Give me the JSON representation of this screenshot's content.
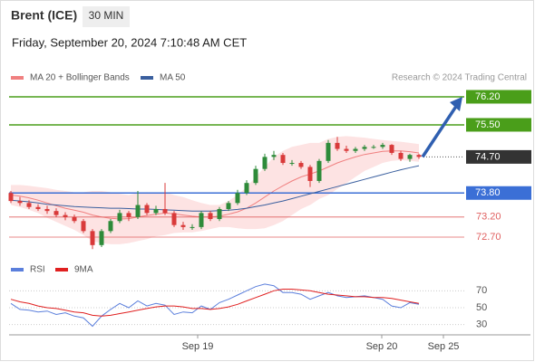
{
  "header": {
    "title": "Brent (ICE)",
    "timeframe": "30 MIN",
    "datetime": "Friday, September 20, 2024 7:10:48 AM CET",
    "attribution": "Research © 2024 Trading Central"
  },
  "chart_data": [
    {
      "type": "candlestick",
      "x": [
        0,
        1,
        2,
        3,
        4,
        5,
        6,
        7,
        8,
        9,
        10,
        11,
        12,
        13,
        14,
        15,
        16,
        17,
        18,
        19,
        20,
        21,
        22,
        23,
        24,
        25,
        26,
        27,
        28,
        29,
        30,
        31,
        32,
        33,
        34,
        35,
        36,
        37,
        38,
        39,
        40,
        41,
        42,
        43,
        44,
        45
      ],
      "open": [
        73.8,
        73.6,
        73.55,
        73.45,
        73.4,
        73.35,
        73.25,
        73.2,
        73.1,
        72.85,
        72.5,
        72.85,
        73.1,
        73.3,
        73.2,
        73.5,
        73.3,
        73.4,
        73.3,
        73.0,
        72.95,
        72.95,
        73.3,
        73.15,
        73.4,
        73.55,
        73.8,
        74.05,
        74.4,
        74.7,
        74.75,
        74.55,
        74.55,
        74.45,
        74.1,
        74.6,
        75.05,
        74.9,
        74.85,
        74.9,
        74.95,
        74.95,
        75.0,
        74.8,
        74.65,
        74.75
      ],
      "high": [
        73.85,
        73.7,
        73.62,
        73.52,
        73.48,
        73.42,
        73.32,
        73.26,
        73.15,
        72.9,
        72.9,
        73.15,
        73.38,
        73.35,
        73.85,
        73.55,
        73.48,
        74.05,
        73.35,
        73.08,
        73.02,
        73.35,
        73.35,
        73.45,
        73.6,
        73.88,
        74.12,
        74.48,
        74.78,
        74.85,
        74.8,
        74.62,
        74.6,
        74.5,
        74.65,
        75.12,
        75.2,
        74.98,
        74.95,
        75.0,
        75.0,
        75.05,
        75.02,
        74.85,
        74.78,
        74.78
      ],
      "low": [
        73.55,
        73.48,
        73.4,
        73.35,
        73.28,
        73.2,
        73.12,
        73.05,
        72.8,
        72.4,
        72.45,
        72.8,
        73.05,
        73.1,
        73.15,
        73.25,
        73.25,
        73.25,
        72.95,
        72.88,
        72.88,
        72.9,
        73.1,
        73.1,
        73.35,
        73.5,
        73.75,
        74.0,
        74.35,
        74.62,
        74.5,
        74.48,
        74.4,
        73.95,
        74.05,
        74.55,
        74.85,
        74.8,
        74.8,
        74.85,
        74.9,
        74.9,
        74.75,
        74.6,
        74.58,
        74.65
      ],
      "close": [
        73.6,
        73.55,
        73.45,
        73.4,
        73.35,
        73.25,
        73.2,
        73.1,
        72.85,
        72.5,
        72.85,
        73.1,
        73.3,
        73.2,
        73.5,
        73.3,
        73.4,
        73.3,
        73.0,
        72.95,
        72.95,
        73.3,
        73.15,
        73.4,
        73.55,
        73.8,
        74.05,
        74.4,
        74.7,
        74.75,
        74.55,
        74.55,
        74.45,
        74.1,
        74.6,
        75.05,
        74.9,
        74.85,
        74.9,
        74.95,
        74.95,
        75.0,
        74.8,
        74.65,
        74.75,
        74.7
      ],
      "up_color": "#2e8b3a",
      "down_color": "#d93a3a",
      "bands": {
        "name": "MA 20 + Bollinger Bands",
        "color": "#f08080",
        "fill": "#fde3e3",
        "values": [
          73.75,
          73.72,
          73.68,
          73.62,
          73.55,
          73.48,
          73.42,
          73.37,
          73.32,
          73.25,
          73.2,
          73.17,
          73.15,
          73.16,
          73.2,
          73.24,
          73.27,
          73.3,
          73.28,
          73.25,
          73.22,
          73.2,
          73.2,
          73.22,
          73.27,
          73.33,
          73.42,
          73.55,
          73.7,
          73.85,
          73.98,
          74.1,
          74.2,
          74.27,
          74.35,
          74.45,
          74.55,
          74.63,
          74.7,
          74.76,
          74.8,
          74.84,
          74.85,
          74.85,
          74.83,
          74.8
        ],
        "upper": [
          74.0,
          74.0,
          73.98,
          73.95,
          73.92,
          73.88,
          73.85,
          73.82,
          73.82,
          73.85,
          73.85,
          73.82,
          73.78,
          73.75,
          73.8,
          73.82,
          73.8,
          73.82,
          73.75,
          73.7,
          73.62,
          73.55,
          73.5,
          73.5,
          73.6,
          73.75,
          73.95,
          74.2,
          74.45,
          74.7,
          74.85,
          74.95,
          75.0,
          75.05,
          75.05,
          75.15,
          75.2,
          75.22,
          75.2,
          75.18,
          75.15,
          75.12,
          75.1,
          75.08,
          75.05,
          75.02
        ],
        "lower": [
          73.5,
          73.45,
          73.38,
          73.3,
          73.18,
          73.08,
          72.98,
          72.88,
          72.75,
          72.6,
          72.55,
          72.52,
          72.52,
          72.55,
          72.6,
          72.65,
          72.72,
          72.75,
          72.8,
          72.82,
          72.82,
          72.85,
          72.9,
          72.95,
          72.95,
          72.92,
          72.9,
          72.9,
          72.92,
          73.0,
          73.1,
          73.25,
          73.4,
          73.5,
          73.65,
          73.75,
          73.9,
          74.05,
          74.2,
          74.35,
          74.45,
          74.55,
          74.6,
          74.62,
          74.6,
          74.58
        ]
      },
      "series": [
        {
          "name": "MA 50",
          "color": "#3a5f9e",
          "values": [
            73.62,
            73.6,
            73.58,
            73.55,
            73.52,
            73.5,
            73.48,
            73.46,
            73.45,
            73.44,
            73.43,
            73.42,
            73.42,
            73.41,
            73.4,
            73.4,
            73.39,
            73.38,
            73.37,
            73.36,
            73.35,
            73.35,
            73.35,
            73.36,
            73.37,
            73.39,
            73.42,
            73.46,
            73.5,
            73.55,
            73.6,
            73.66,
            73.72,
            73.78,
            73.84,
            73.9,
            73.96,
            74.02,
            74.08,
            74.14,
            74.2,
            74.26,
            74.32,
            74.38,
            74.43,
            74.48
          ]
        }
      ],
      "levels": [
        {
          "value": 76.2,
          "label": "76.20",
          "color": "#4a9e1a",
          "boxed": true,
          "dotted": false
        },
        {
          "value": 75.5,
          "label": "75.50",
          "color": "#4a9e1a",
          "boxed": true,
          "dotted": false
        },
        {
          "value": 74.7,
          "label": "74.70",
          "color": "#333333",
          "boxed": true,
          "dotted": true
        },
        {
          "value": 73.8,
          "label": "73.80",
          "color": "#3b6fd6",
          "boxed": true,
          "dotted": false
        },
        {
          "value": 73.2,
          "label": "73.20",
          "color": "#e06060",
          "boxed": false,
          "dotted": false
        },
        {
          "value": 72.7,
          "label": "72.70",
          "color": "#e06060",
          "boxed": false,
          "dotted": false
        }
      ],
      "arrow_color": "#2f5fb0",
      "xlim": [
        -0.2,
        57.3
      ],
      "ylim": [
        72.18,
        76.47
      ]
    },
    {
      "type": "line",
      "x": [
        0,
        1,
        2,
        3,
        4,
        5,
        6,
        7,
        8,
        9,
        10,
        11,
        12,
        13,
        14,
        15,
        16,
        17,
        18,
        19,
        20,
        21,
        22,
        23,
        24,
        25,
        26,
        27,
        28,
        29,
        30,
        31,
        32,
        33,
        34,
        35,
        36,
        37,
        38,
        39,
        40,
        41,
        42,
        43,
        44,
        45
      ],
      "series": [
        {
          "name": "RSI",
          "color": "#5b7fdc",
          "values": [
            55,
            48,
            47,
            45,
            46,
            42,
            44,
            40,
            38,
            28,
            40,
            48,
            55,
            50,
            58,
            52,
            55,
            53,
            42,
            45,
            44,
            52,
            48,
            56,
            60,
            65,
            70,
            75,
            78,
            76,
            68,
            68,
            66,
            60,
            64,
            68,
            64,
            62,
            63,
            64,
            62,
            60,
            52,
            50,
            56,
            54
          ]
        },
        {
          "name": "9MA",
          "color": "#e02020",
          "values": [
            60,
            57,
            55,
            52,
            50,
            49,
            47,
            45,
            44,
            41,
            40,
            41,
            43,
            45,
            47,
            49,
            51,
            52,
            52,
            51,
            49,
            49,
            48,
            49,
            51,
            54,
            58,
            62,
            66,
            70,
            72,
            72,
            71,
            70,
            68,
            66,
            65,
            64,
            63,
            63,
            62,
            62,
            61,
            59,
            57,
            55
          ]
        }
      ],
      "xlim": [
        -0.2,
        57.3
      ],
      "ylim": [
        20,
        80
      ],
      "yticks": [
        70,
        50,
        30
      ],
      "xticks": [
        {
          "value": 20.6,
          "label": "Sep 19"
        },
        {
          "value": 40.9,
          "label": "Sep 20"
        },
        {
          "value": 47.7,
          "label": "Sep 25"
        }
      ],
      "grid": true
    }
  ]
}
